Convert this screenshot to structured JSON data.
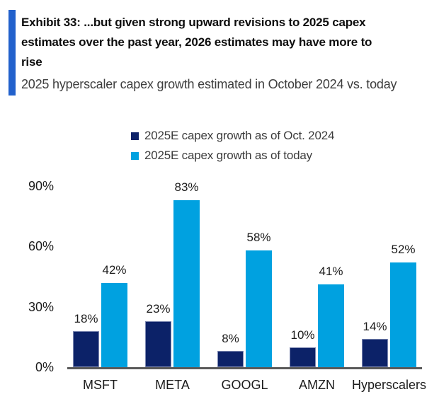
{
  "header": {
    "title_lines": [
      "Exhibit 33: ...but given strong upward revisions to 2025 capex",
      "estimates over the past year, 2026 estimates may have more to",
      "rise"
    ],
    "subtitle": "2025 hyperscaler capex growth estimated in October 2024 vs. today"
  },
  "legend": {
    "items": [
      {
        "label": "2025E capex growth as of Oct. 2024",
        "swatch": "#0c2268"
      },
      {
        "label": "2025E capex growth as of today",
        "swatch": "#00a1e0"
      }
    ]
  },
  "colors": {
    "accent_bar": "#2261cc",
    "navy_bar": "#0c2268",
    "light_blue_bar": "#00a1e0",
    "axis_line": "#5a5a5a",
    "subtitle_text": "#3d3d3d",
    "label_text": "#1c1c1c"
  },
  "chart_data": {
    "type": "bar",
    "title": "2025 hyperscaler capex growth estimated in October 2024 vs. today",
    "categories": [
      "MSFT",
      "META",
      "GOOGL",
      "AMZN",
      "Hyperscalers"
    ],
    "series": [
      {
        "name": "2025E capex growth as of Oct. 2024",
        "color": "#0c2268",
        "values": [
          18,
          23,
          8,
          10,
          14
        ]
      },
      {
        "name": "2025E capex growth as of today",
        "color": "#00a1e0",
        "values": [
          42,
          83,
          58,
          41,
          52
        ]
      }
    ],
    "value_label_format": "{v}%",
    "yticks": [
      {
        "value": 0,
        "label": "0%"
      },
      {
        "value": 30,
        "label": "30%"
      },
      {
        "value": 60,
        "label": "60%"
      },
      {
        "value": 90,
        "label": "90%"
      }
    ],
    "ylim": [
      0,
      90
    ],
    "grid": false,
    "legend_position": "top",
    "xlabel": "",
    "ylabel": ""
  }
}
